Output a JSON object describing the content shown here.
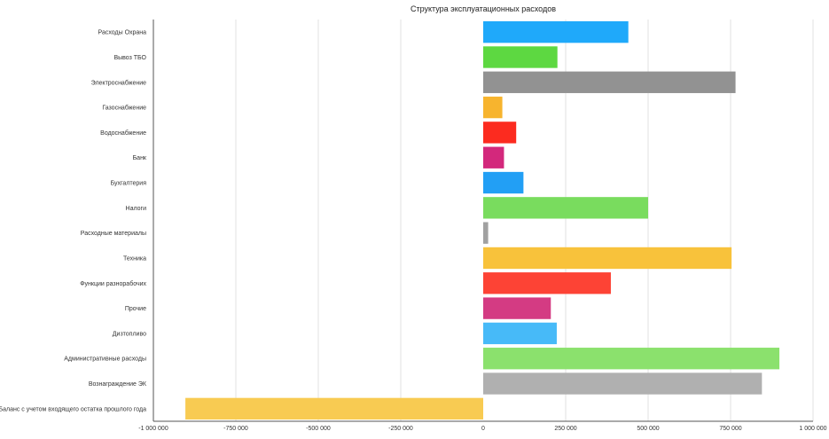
{
  "chart_data": {
    "type": "bar",
    "orientation": "horizontal",
    "title": "Структура эксплуатационных расходов",
    "xlabel": "",
    "ylabel": "",
    "xlim": [
      -1000000,
      1000000
    ],
    "x_ticks": [
      -1000000,
      -750000,
      -500000,
      -250000,
      0,
      250000,
      500000,
      750000,
      1000000
    ],
    "x_tick_labels": [
      "-1 000 000",
      "-750 000",
      "-500 000",
      "-250 000",
      "0",
      "250 000",
      "500 000",
      "750 000",
      "1 000 000"
    ],
    "grid": true,
    "legend": "none",
    "categories": [
      "Расходы Охрана",
      "Вывоз ТБО",
      "Электроснабжение",
      "Газоснабжение",
      "Водоснабжение",
      "Банк",
      "Бухгалтерия",
      "Налоги",
      "Расходные материалы",
      "Техника",
      "Функции разнорабочих",
      "Прочие",
      "Дизтопливо",
      "Административные расходы",
      "Вознаграждение ЭК",
      "Баланс с учетом входящего остатка прошлого года"
    ],
    "values": [
      440000,
      225000,
      765000,
      58000,
      100000,
      63000,
      122000,
      500000,
      15000,
      753000,
      387000,
      205000,
      223000,
      898000,
      845000,
      -903000
    ],
    "colors": [
      "#1fa9fa",
      "#5dd841",
      "#929292",
      "#f7b42e",
      "#fc2b1f",
      "#d3287c",
      "#229ff5",
      "#79dc5e",
      "#a1a1a1",
      "#f8c23b",
      "#fd4335",
      "#d43b83",
      "#47baf8",
      "#8be16d",
      "#b0b0b0",
      "#f8cb52"
    ]
  }
}
